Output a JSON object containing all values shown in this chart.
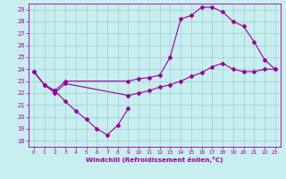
{
  "bg_color": "#c8eef0",
  "grid_color": "#9ecfcf",
  "line_color": "#990099",
  "xlabel": "Windchill (Refroidissement éolien,°C)",
  "xlim": [
    -0.5,
    23.5
  ],
  "ylim": [
    17.5,
    29.5
  ],
  "yticks": [
    18,
    19,
    20,
    21,
    22,
    23,
    24,
    25,
    26,
    27,
    28,
    29
  ],
  "xticks": [
    0,
    1,
    2,
    3,
    4,
    5,
    6,
    7,
    8,
    9,
    10,
    11,
    12,
    13,
    14,
    15,
    16,
    17,
    18,
    19,
    20,
    21,
    22,
    23
  ],
  "series1_x": [
    0,
    1,
    2,
    3,
    4,
    5,
    6,
    7,
    8,
    9
  ],
  "series1_y": [
    23.8,
    22.7,
    22.2,
    21.3,
    20.5,
    19.8,
    19.0,
    18.5,
    19.3,
    20.7
  ],
  "series2_x": [
    0,
    1,
    2,
    3,
    9,
    10,
    11,
    12,
    13,
    14,
    15,
    16,
    17,
    18,
    19,
    20,
    21,
    22,
    23
  ],
  "series2_y": [
    23.8,
    22.7,
    22.2,
    23.0,
    23.0,
    23.2,
    23.3,
    23.5,
    25.0,
    28.2,
    28.5,
    29.2,
    29.2,
    28.8,
    28.0,
    27.6,
    26.3,
    24.8,
    24.0
  ],
  "series3_x": [
    0,
    1,
    2,
    3,
    9,
    10,
    11,
    12,
    13,
    14,
    15,
    16,
    17,
    18,
    19,
    20,
    21,
    22,
    23
  ],
  "series3_y": [
    23.8,
    22.7,
    22.0,
    22.8,
    21.8,
    22.0,
    22.2,
    22.5,
    22.7,
    23.0,
    23.4,
    23.7,
    24.2,
    24.5,
    24.0,
    23.8,
    23.8,
    24.0,
    24.0
  ],
  "series4_x": [
    7,
    9
  ],
  "series4_y": [
    18.5,
    20.7
  ]
}
